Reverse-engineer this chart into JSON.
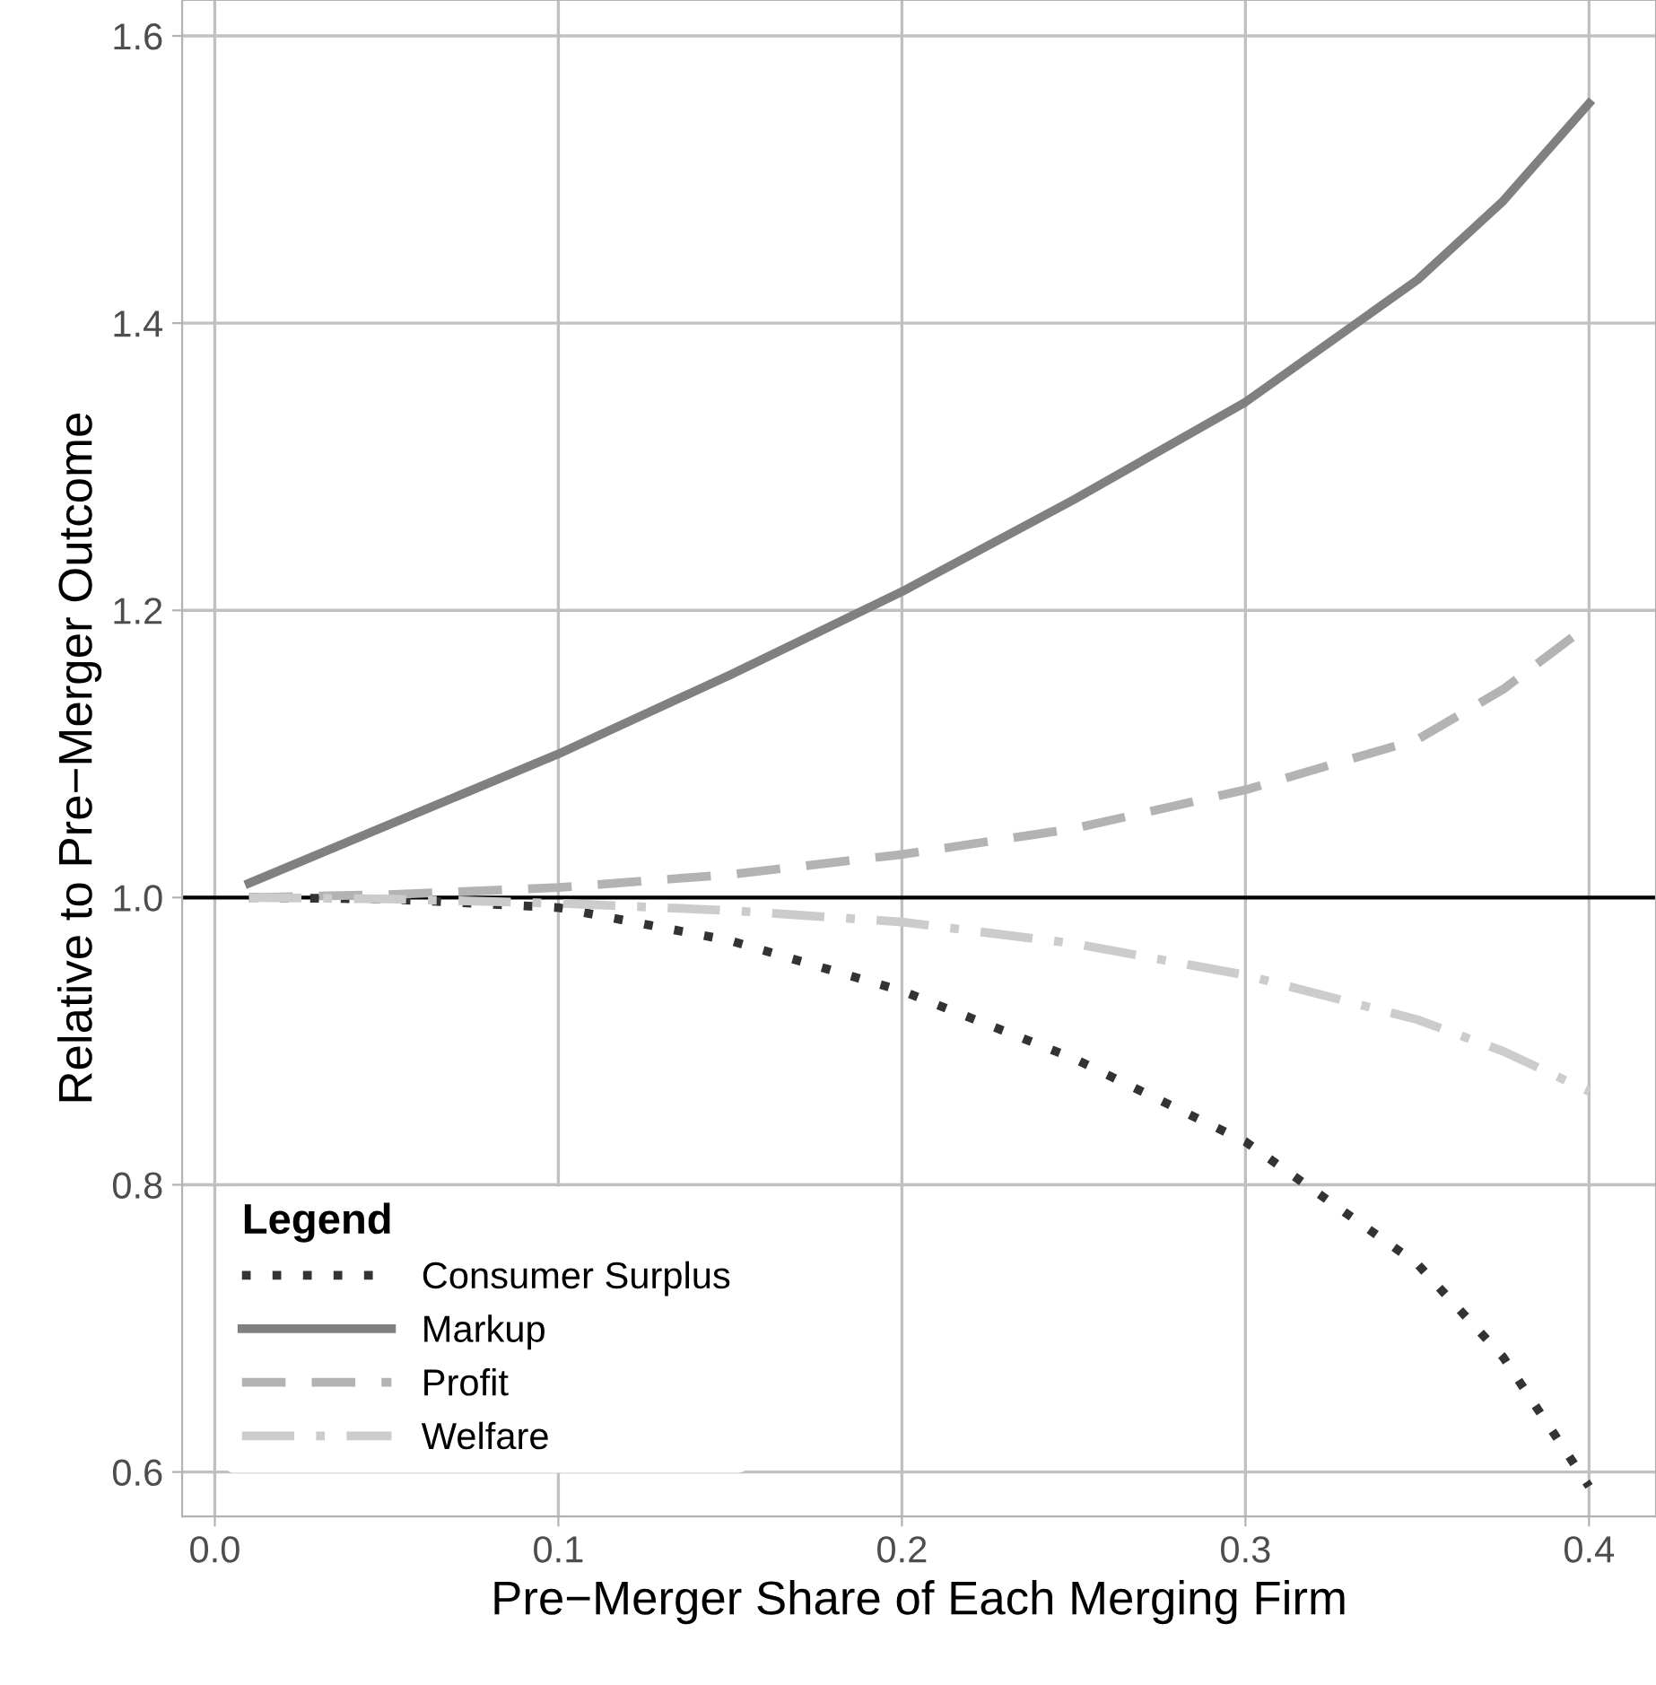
{
  "chart_data": {
    "type": "line",
    "xlabel": "Pre−Merger Share of Each Merging Firm",
    "ylabel": "Relative to Pre−Merger Outcome",
    "legend_title": "Legend",
    "legend": "bottom left",
    "grid": true,
    "xlim": [
      -0.0095,
      0.4195
    ],
    "xticks": [
      {
        "value": 0,
        "label": "0.0"
      },
      0.1,
      0.2,
      0.3,
      0.4
    ],
    "ylim": [
      0.569,
      1.625
    ],
    "yticks": [
      0.6,
      0.8,
      {
        "value": 1,
        "label": "1.0"
      },
      1.2,
      1.4,
      1.6
    ],
    "x": [
      0.01,
      0.05,
      0.1,
      0.15,
      0.2,
      0.25,
      0.3,
      0.35,
      0.375,
      0.4
    ],
    "series": [
      {
        "name": "Consumer Surplus",
        "color": "#333333",
        "line_style": "dotted",
        "values": [
          1.0,
          0.999,
          0.993,
          0.97,
          0.935,
          0.888,
          0.83,
          0.745,
          0.68,
          0.59
        ]
      },
      {
        "name": "Markup",
        "color": "#808080",
        "line_style": "solid",
        "values": [
          1.01,
          1.05,
          1.1,
          1.155,
          1.213,
          1.277,
          1.345,
          1.43,
          1.485,
          1.553
        ]
      },
      {
        "name": "Profit",
        "color": "#b3b3b3",
        "line_style": "dashed",
        "values": [
          1.0,
          1.002,
          1.007,
          1.016,
          1.03,
          1.048,
          1.075,
          1.11,
          1.145,
          1.19
        ]
      },
      {
        "name": "Welfare",
        "color": "#cccccc",
        "line_style": "dashdot",
        "values": [
          1.0,
          0.999,
          0.996,
          0.991,
          0.983,
          0.968,
          0.946,
          0.915,
          0.893,
          0.865
        ]
      }
    ],
    "ref_lines": [
      {
        "axis": "y",
        "value": 1,
        "color": "#000000",
        "line_style": "solid"
      }
    ]
  }
}
